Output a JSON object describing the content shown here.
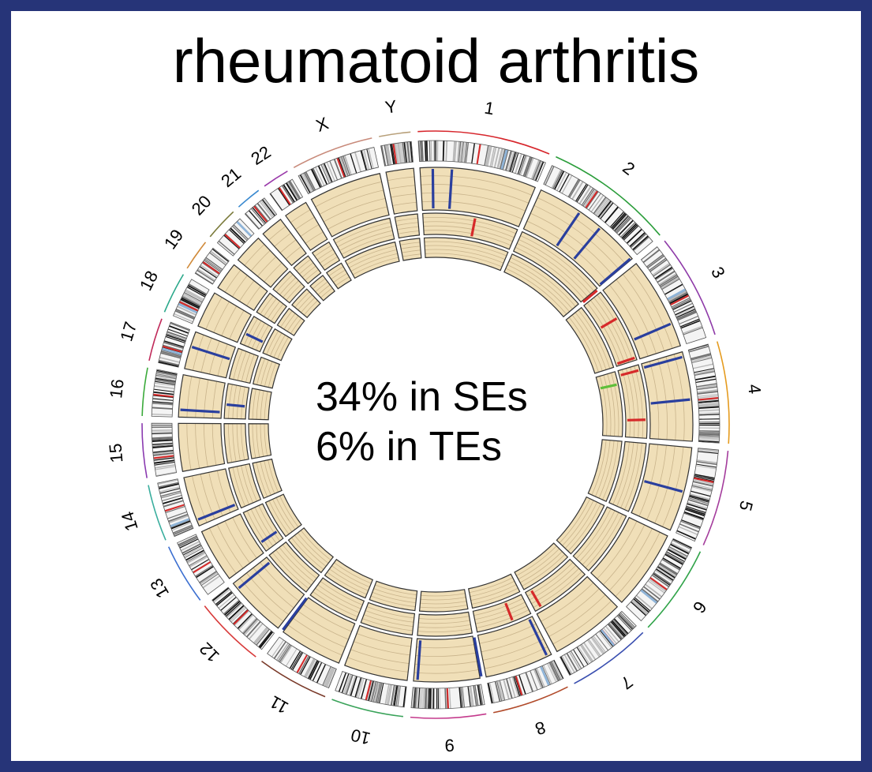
{
  "title": "rheumatoid arthritis",
  "center_text": {
    "line1": "34% in SEs",
    "line2": "6% in TEs"
  },
  "chromosomes": [
    {
      "label": "1",
      "size": 249
    },
    {
      "label": "2",
      "size": 243
    },
    {
      "label": "3",
      "size": 198
    },
    {
      "label": "4",
      "size": 191
    },
    {
      "label": "5",
      "size": 181
    },
    {
      "label": "6",
      "size": 171
    },
    {
      "label": "7",
      "size": 159
    },
    {
      "label": "8",
      "size": 146
    },
    {
      "label": "9",
      "size": 141
    },
    {
      "label": "10",
      "size": 136
    },
    {
      "label": "11",
      "size": 135
    },
    {
      "label": "12",
      "size": 134
    },
    {
      "label": "13",
      "size": 115
    },
    {
      "label": "14",
      "size": 107
    },
    {
      "label": "15",
      "size": 102
    },
    {
      "label": "16",
      "size": 90
    },
    {
      "label": "17",
      "size": 81
    },
    {
      "label": "18",
      "size": 78
    },
    {
      "label": "19",
      "size": 59
    },
    {
      "label": "20",
      "size": 63
    },
    {
      "label": "21",
      "size": 48
    },
    {
      "label": "22",
      "size": 51
    },
    {
      "label": "X",
      "size": 155
    },
    {
      "label": "Y",
      "size": 59
    }
  ],
  "colors": {
    "frame": "#263478",
    "track_fill": "#f0dfb8",
    "track_line": "#c9b48c",
    "mark_blue": "#2a3f9e",
    "mark_red": "#d62a2a",
    "mark_green": "#5fbf3a",
    "chromosome_arcs": [
      "#d7262c",
      "#2a9d3a",
      "#8e3aa8",
      "#e59b1e",
      "#a43c9c",
      "#31a44a",
      "#3a4fb0",
      "#b14a2a",
      "#c43a8c",
      "#3aa35a",
      "#7a3a2a",
      "#d83a3a",
      "#3a6ed0",
      "#3aae9e",
      "#8a3ab0",
      "#3aaa3a",
      "#c02a5a",
      "#2aa88a",
      "#d08a3a",
      "#7a7a3a",
      "#3a8ad0",
      "#9a3aaa",
      "#c88a7a",
      "#b8a07a"
    ]
  },
  "marks": {
    "outer_track": [
      {
        "position": 8,
        "color": "blue"
      },
      {
        "position": 20,
        "color": "blue"
      },
      {
        "position": 105,
        "color": "blue"
      },
      {
        "position": 121,
        "color": "blue"
      },
      {
        "position": 148,
        "color": "blue"
      },
      {
        "position": 196,
        "color": "blue"
      },
      {
        "position": 218,
        "color": "blue"
      },
      {
        "position": 245,
        "color": "blue"
      },
      {
        "position": 303,
        "color": "blue"
      },
      {
        "position": 440,
        "color": "blue"
      },
      {
        "position": 483,
        "color": "blue"
      },
      {
        "position": 523,
        "color": "blue"
      },
      {
        "position": 614,
        "color": "blue"
      },
      {
        "position": 652,
        "color": "blue"
      },
      {
        "position": 702,
        "color": "blue"
      },
      {
        "position": 772,
        "color": "blue"
      },
      {
        "position": 812,
        "color": "blue"
      }
    ],
    "middle_track": [
      {
        "position": 40,
        "color": "red"
      },
      {
        "position": 150,
        "color": "red"
      },
      {
        "position": 176,
        "color": "red"
      },
      {
        "position": 209,
        "color": "red"
      },
      {
        "position": 219,
        "color": "red"
      },
      {
        "position": 257,
        "color": "red"
      },
      {
        "position": 428,
        "color": "red"
      },
      {
        "position": 452,
        "color": "red"
      },
      {
        "position": 668,
        "color": "blue"
      },
      {
        "position": 778,
        "color": "blue"
      },
      {
        "position": 834,
        "color": "blue"
      }
    ],
    "inner_track": [
      {
        "position": 226,
        "color": "green"
      }
    ]
  }
}
